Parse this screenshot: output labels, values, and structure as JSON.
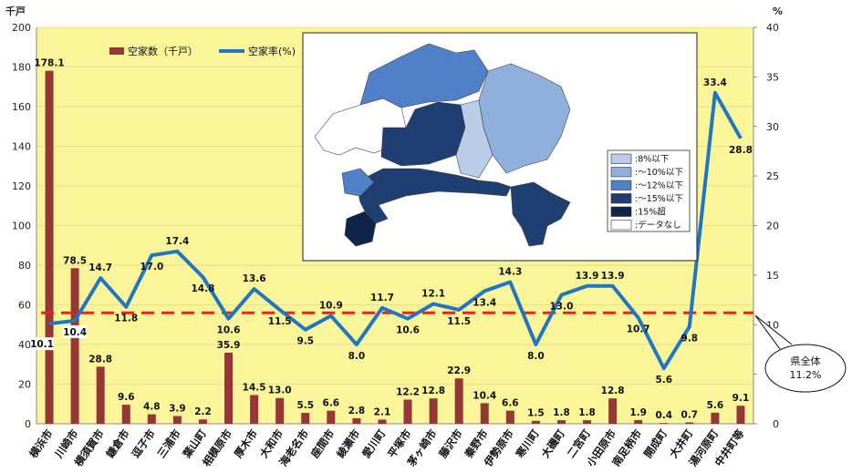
{
  "chart_data": {
    "type": "bar",
    "categories": [
      "横浜市",
      "川崎市",
      "横須賀市",
      "鎌倉市",
      "逗子市",
      "三浦市",
      "葉山町",
      "相模原市",
      "厚木市",
      "大和市",
      "海老名市",
      "座間市",
      "綾瀬市",
      "愛川町",
      "平塚市",
      "茅ヶ崎市",
      "藤沢市",
      "秦野市",
      "伊勢原市",
      "寒川町",
      "大磯町",
      "二宮町",
      "小田原市",
      "南足柄市",
      "開成町",
      "大井町",
      "湯河原町",
      "中井町等"
    ],
    "series": [
      {
        "name": "空家数（千戸）",
        "type": "bar",
        "axis": "left",
        "color": "#953735",
        "values": [
          178.1,
          78.5,
          28.8,
          9.6,
          4.8,
          3.9,
          2.2,
          35.9,
          14.5,
          13.0,
          5.5,
          6.6,
          2.8,
          2.1,
          12.2,
          12.8,
          22.9,
          10.4,
          6.6,
          1.5,
          1.8,
          1.8,
          12.8,
          1.9,
          0.4,
          0.7,
          5.6,
          9.1
        ],
        "labels": [
          "178.1",
          "78.5",
          "28.8",
          "9.6",
          "4.8",
          "3.9",
          "2.2",
          "35.9",
          "14.5",
          "13.0",
          "5.5",
          "6.6",
          "2.8",
          "2.1",
          "12.2",
          "12.8",
          "22.9",
          "10.4",
          "6.6",
          "1.5",
          "1.8",
          "1.8",
          "12.8",
          "1.9",
          "0.4",
          "0.7",
          "5.6",
          "9.1"
        ]
      },
      {
        "name": "空家率(%)",
        "type": "line",
        "axis": "right",
        "color": "#1f77c4",
        "values": [
          10.1,
          10.4,
          14.7,
          11.8,
          17.0,
          17.4,
          14.8,
          10.6,
          13.6,
          11.5,
          9.5,
          10.9,
          8.0,
          11.7,
          10.6,
          12.1,
          11.5,
          13.4,
          14.3,
          8.0,
          13.0,
          13.9,
          13.9,
          10.7,
          5.6,
          9.8,
          33.4,
          28.8
        ],
        "labels": [
          "10.1",
          "10.4",
          "14.7",
          "11.8",
          "17.0",
          "17.4",
          "14.8",
          "10.6",
          "13.6",
          "11.5",
          "9.5",
          "10.9",
          "8.0",
          "11.7",
          "10.6",
          "12.1",
          "11.5",
          "13.4",
          "14.3",
          "8.0",
          "13.0",
          "13.9",
          "13.9",
          "10.7",
          "5.6",
          "9.8",
          "33.4",
          "28.8"
        ]
      }
    ],
    "left_axis": {
      "unit": "千戸",
      "min": 0,
      "max": 200,
      "ticks": [
        "0",
        "20",
        "40",
        "60",
        "80",
        "100",
        "120",
        "140",
        "160",
        "180",
        "200"
      ]
    },
    "right_axis": {
      "unit": "%",
      "min": 0,
      "max": 40,
      "ticks": [
        "0",
        "5",
        "10",
        "15",
        "20",
        "25",
        "30",
        "35",
        "40"
      ]
    },
    "reference_line": {
      "value": 11.2,
      "axis": "right",
      "color": "#e8241a",
      "callout_line1": "県全体",
      "callout_line2": "11.2%"
    },
    "plot_background": "#fbf59a",
    "legend_position": "top-left",
    "inset_map": {
      "legend": [
        {
          "label": "8%以下",
          "color": "#b9cde8"
        },
        {
          "label": "～10%以下",
          "color": "#8fb0dc"
        },
        {
          "label": "～12%以下",
          "color": "#4f80c8"
        },
        {
          "label": "～15%以下",
          "color": "#1f3f72"
        },
        {
          "label": "15%超",
          "color": "#0f2448"
        },
        {
          "label": "データなし",
          "color": "#ffffff"
        }
      ]
    }
  }
}
